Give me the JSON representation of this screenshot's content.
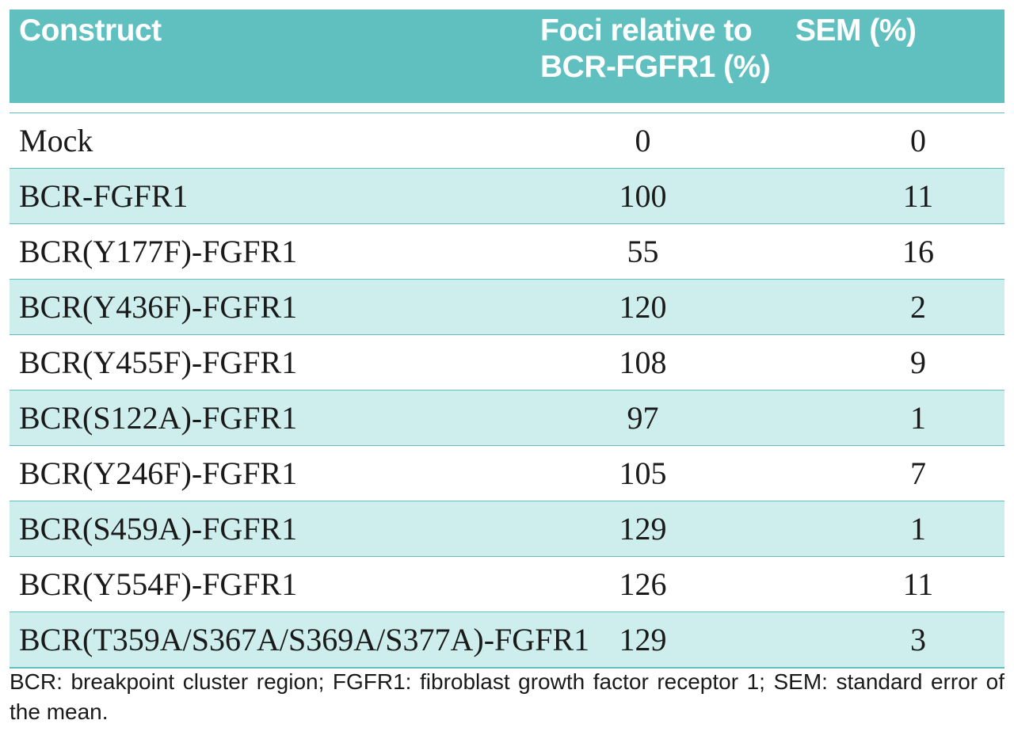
{
  "table": {
    "headers": {
      "construct": "Construct",
      "foci_line1": "Foci relative to",
      "foci_line2": "BCR-FGFR1 (%)",
      "sem": "SEM (%)"
    },
    "rows": [
      {
        "construct": "Mock",
        "foci": "0",
        "sem": "0"
      },
      {
        "construct": "BCR-FGFR1",
        "foci": "100",
        "sem": "11"
      },
      {
        "construct": "BCR(Y177F)-FGFR1",
        "foci": "55",
        "sem": "16"
      },
      {
        "construct": "BCR(Y436F)-FGFR1",
        "foci": "120",
        "sem": "2"
      },
      {
        "construct": "BCR(Y455F)-FGFR1",
        "foci": "108",
        "sem": "9"
      },
      {
        "construct": "BCR(S122A)-FGFR1",
        "foci": "97",
        "sem": "1"
      },
      {
        "construct": "BCR(Y246F)-FGFR1",
        "foci": "105",
        "sem": "7"
      },
      {
        "construct": "BCR(S459A)-FGFR1",
        "foci": "129",
        "sem": "1"
      },
      {
        "construct": "BCR(Y554F)-FGFR1",
        "foci": "126",
        "sem": "11"
      },
      {
        "construct": "BCR(T359A/S367A/S369A/S377A)-FGFR1",
        "foci": "129",
        "sem": "3"
      }
    ]
  },
  "footnote": "BCR: breakpoint cluster region; FGFR1: fibroblast growth factor receptor 1; SEM: standard error of the mean.",
  "colors": {
    "header_bg": "#5fc0bf",
    "row_shade": "#cdeeed"
  }
}
